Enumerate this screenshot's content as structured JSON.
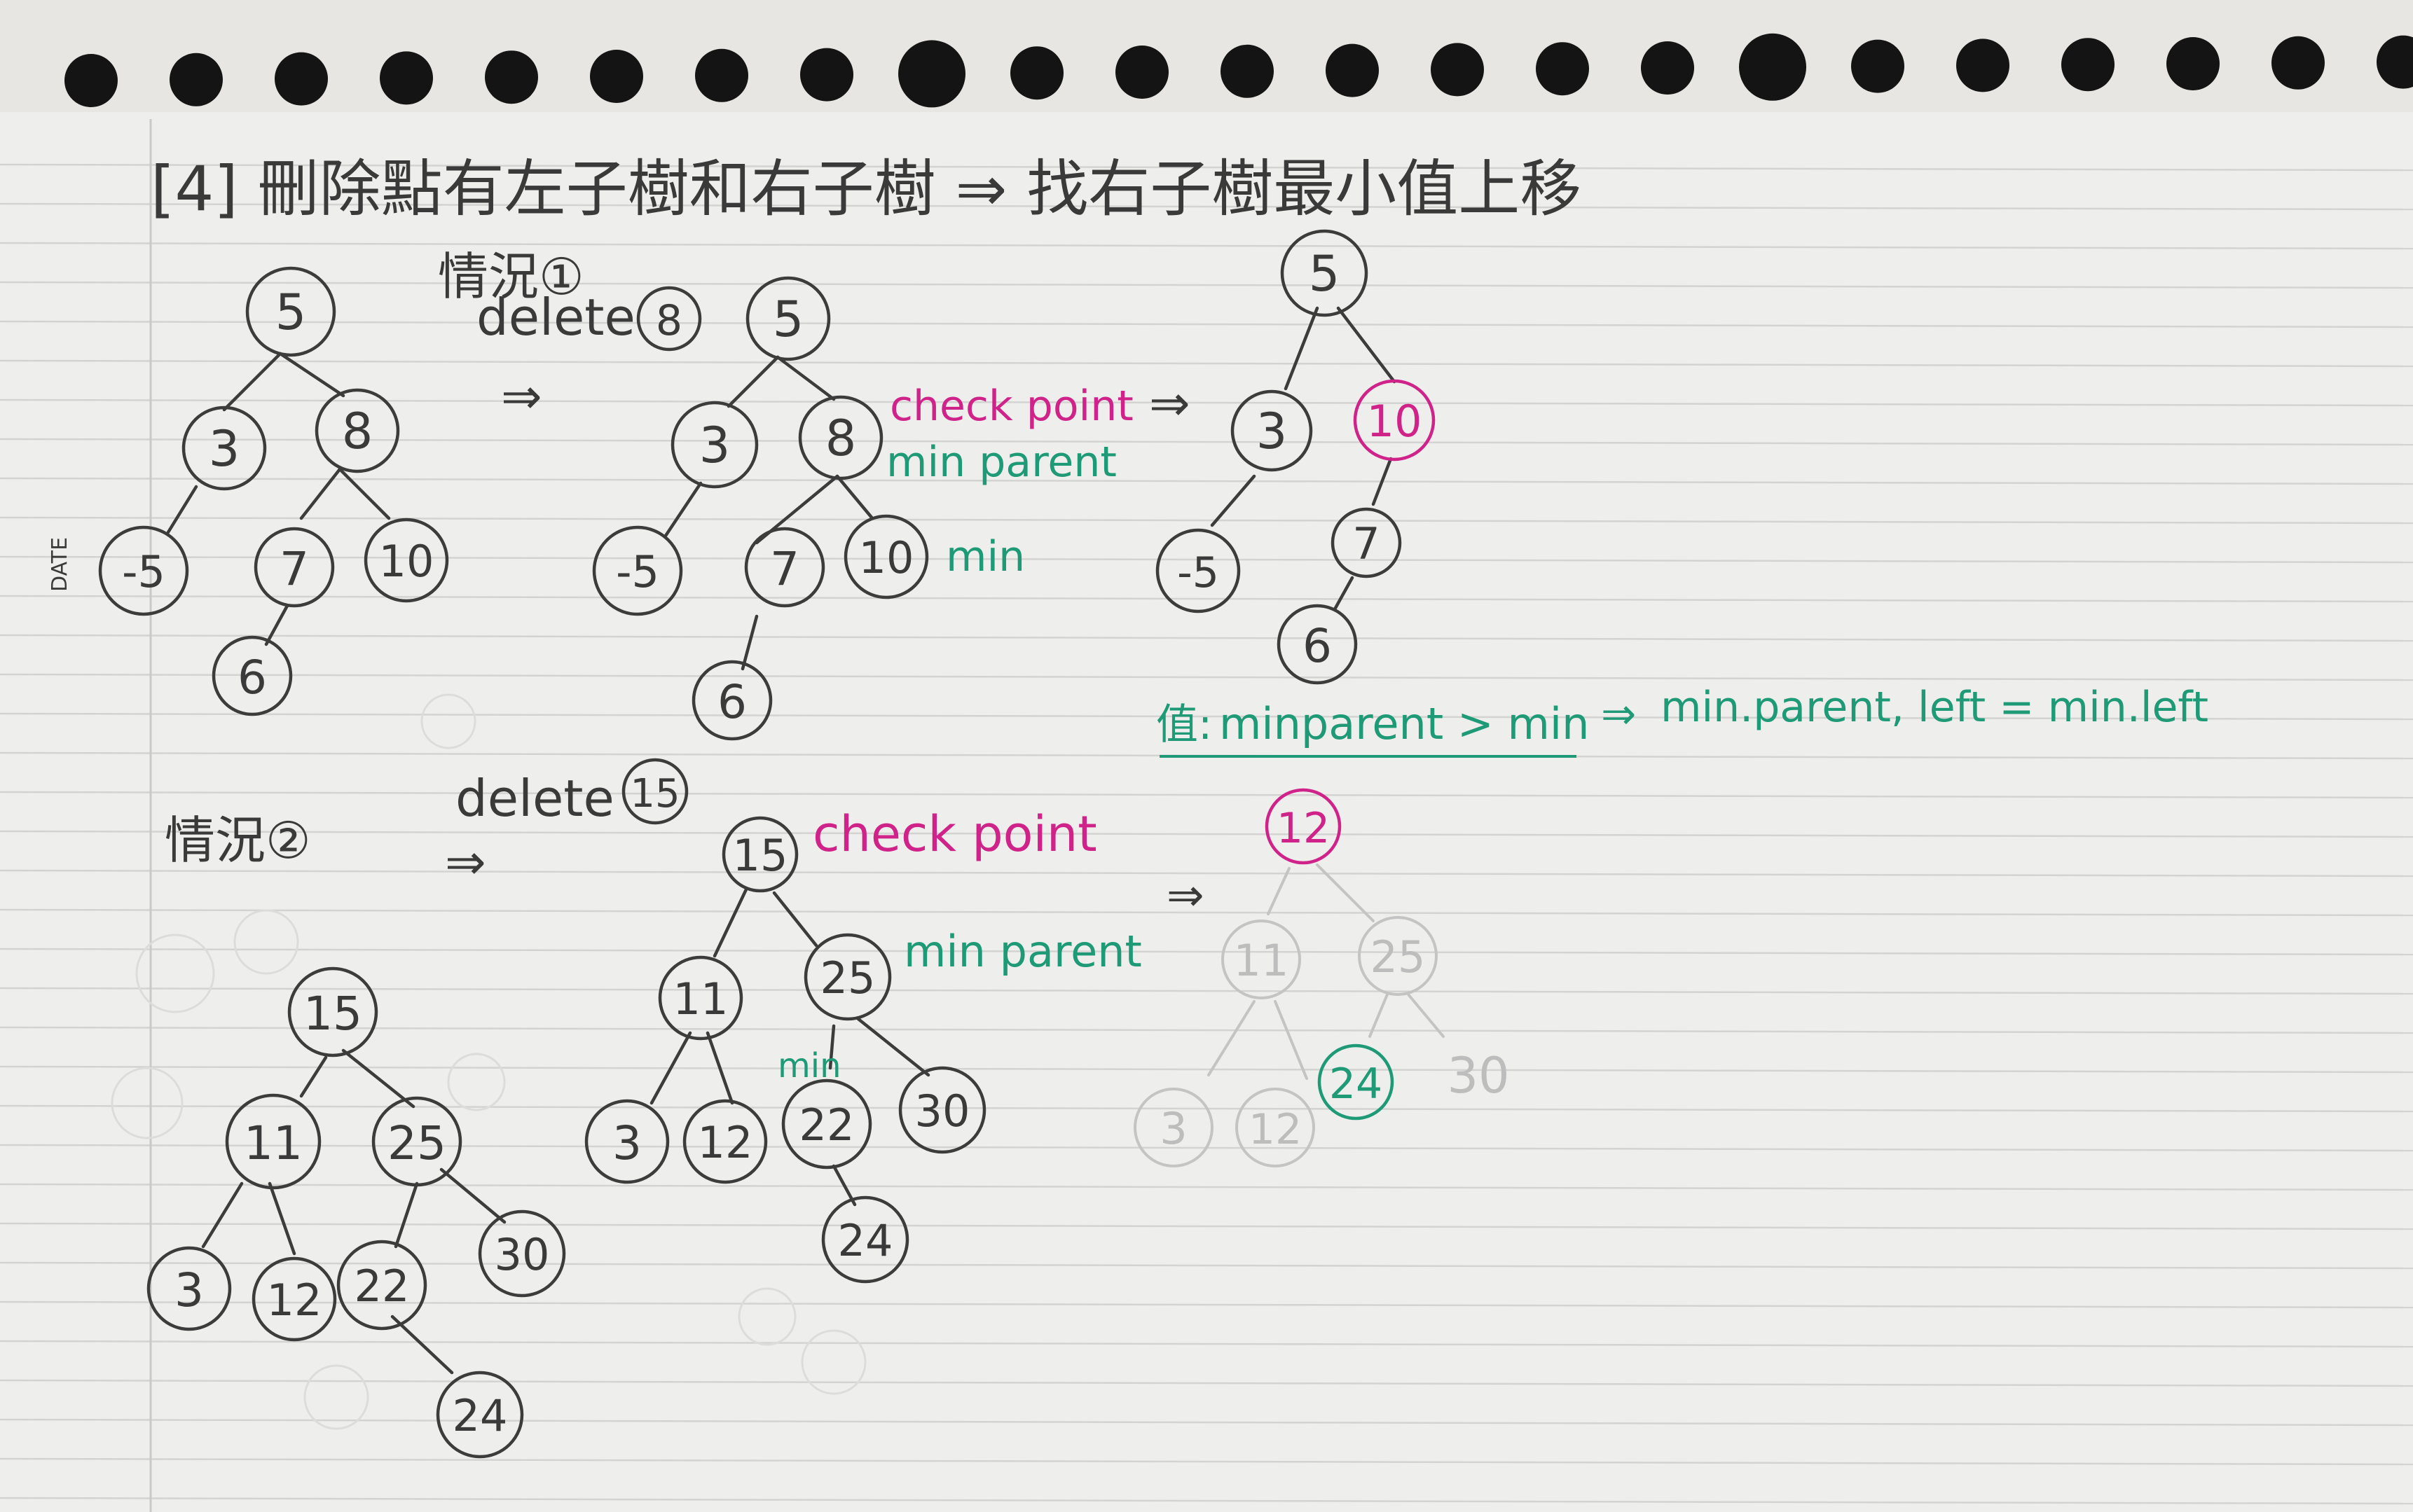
{
  "title": "[4] 刪除點有左子樹和右子樹 ⇒ 找右子樹最小值上移",
  "date_label": "DATE",
  "colors": {
    "paper": "#eeeeec",
    "pencil": "#3c3c3c",
    "pink": "#d0238a",
    "green": "#1f9a76"
  },
  "case1": {
    "label": "情況①",
    "action": "delete",
    "deleted": "8",
    "arrow": "⇒",
    "trees": {
      "before": {
        "root": "5",
        "a": "3",
        "b": "8",
        "c": "-5",
        "d": "7",
        "e": "10",
        "f": "6"
      },
      "marked": {
        "root": "5",
        "a": "3",
        "b": "8",
        "c": "-5",
        "d": "7",
        "e": "10",
        "f": "6"
      },
      "after": {
        "root": "5",
        "a": "3",
        "b": "10",
        "c": "-5",
        "d": "7",
        "f": "6"
      }
    },
    "check_point": "check point",
    "min_parent": "min parent",
    "min": "min",
    "result_arrow": "⇒"
  },
  "note": {
    "prefix": "值:",
    "condition": "minparent > min",
    "arrow": "⇒",
    "result": "min.parent, left = min.left"
  },
  "case2": {
    "label": "情況②",
    "action": "delete",
    "deleted": "15",
    "arrow": "⇒",
    "trees": {
      "before": {
        "root": "15",
        "a": "11",
        "b": "25",
        "c": "3",
        "d": "12",
        "e": "22",
        "f": "30",
        "g": "24"
      },
      "marked": {
        "root": "15",
        "a": "11",
        "b": "25",
        "c": "3",
        "d": "12",
        "e": "22",
        "f": "30",
        "g": "24"
      },
      "after": {
        "root": "12",
        "a": "11",
        "b": "25",
        "c": "3",
        "d": "12",
        "e": "24",
        "f": "30"
      }
    },
    "check_point": "check point",
    "min_parent": "min parent",
    "min": "min",
    "result_arrow": "⇒"
  }
}
